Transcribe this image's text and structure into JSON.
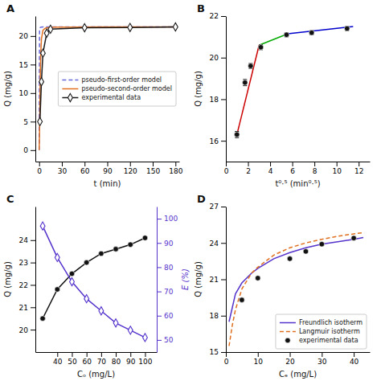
{
  "chart_data": [
    {
      "type": "line",
      "title": "A",
      "xlabel": "t (min)",
      "ylabel": "Q (mg/g)",
      "xlim": [
        -5,
        185
      ],
      "ylim": [
        -2,
        23.5
      ],
      "xticks": [
        0,
        30,
        60,
        90,
        120,
        150,
        180
      ],
      "yticks": [
        0,
        5,
        10,
        15,
        20
      ],
      "legend": "right",
      "series": [
        {
          "name": "pseudo-first-order model",
          "color": "#6666dd",
          "line_style": "dashed",
          "x": [
            0,
            0.5,
            1,
            1.5,
            2,
            3,
            5,
            10,
            30,
            60,
            90,
            120,
            150,
            180
          ],
          "values": [
            0,
            20.8,
            21.3,
            21.5,
            21.55,
            21.58,
            21.6,
            21.6,
            21.6,
            21.6,
            21.6,
            21.6,
            21.6,
            21.6
          ]
        },
        {
          "name": "pseudo-second-order model",
          "color": "#e07020",
          "line_style": "solid",
          "x": [
            0,
            0.5,
            1,
            1.5,
            2,
            3,
            5,
            8,
            12,
            20,
            40,
            80,
            120,
            180
          ],
          "values": [
            0,
            3.0,
            8.0,
            13.0,
            16.5,
            19.5,
            21.0,
            21.35,
            21.5,
            21.55,
            21.58,
            21.6,
            21.6,
            21.6
          ]
        },
        {
          "name": "experimental data",
          "color": "#1a1a1a",
          "line_style": "solid",
          "marker": "diamond",
          "x": [
            1,
            3,
            5,
            10,
            15,
            60,
            120,
            180
          ],
          "values": [
            5.0,
            12.0,
            17.0,
            20.5,
            21.2,
            21.45,
            21.5,
            21.6
          ]
        }
      ]
    },
    {
      "type": "line",
      "title": "B",
      "xlabel": "t⁰·⁵ (min⁰·⁵)",
      "ylabel": "Q (mg/g)",
      "xlim": [
        0,
        13
      ],
      "ylim": [
        15,
        22
      ],
      "xticks": [
        0,
        2,
        4,
        6,
        8,
        10,
        12
      ],
      "yticks": [
        16,
        18,
        20,
        22
      ],
      "series": [
        {
          "color": "#cc0000",
          "line_style": "solid",
          "x": [
            1.0,
            3.0
          ],
          "values": [
            16.3,
            20.6
          ]
        },
        {
          "color": "#00aa00",
          "line_style": "solid",
          "x": [
            3.0,
            5.6
          ],
          "values": [
            20.6,
            21.15
          ]
        },
        {
          "color": "#0000cc",
          "line_style": "solid",
          "x": [
            5.6,
            11.5
          ],
          "values": [
            21.15,
            21.5
          ]
        },
        {
          "type": "scatter",
          "color": "#111111",
          "marker": "circle",
          "x": [
            1.0,
            1.73,
            2.24,
            3.16,
            5.48,
            7.75,
            10.95
          ],
          "values": [
            16.3,
            18.8,
            19.6,
            20.5,
            21.1,
            21.2,
            21.4
          ],
          "errors": [
            0.15,
            0.15,
            0.12,
            0.12,
            0.1,
            0.1,
            0.1
          ]
        }
      ]
    },
    {
      "type": "line",
      "title": "C",
      "xlabel": "Cₒ (mg/L)",
      "ylabel": "Q (mg/g)",
      "y2label": "E (%)",
      "xlim": [
        25,
        108
      ],
      "ylim": [
        19,
        25.5
      ],
      "y2lim": [
        45,
        105
      ],
      "xticks": [
        40,
        50,
        60,
        70,
        80,
        90,
        100
      ],
      "yticks": [
        20,
        21,
        22,
        23,
        24
      ],
      "y2ticks": [
        50,
        60,
        70,
        80,
        90,
        100
      ],
      "series": [
        {
          "color": "#111111",
          "line_style": "solid",
          "marker": "circle",
          "x": [
            30,
            40,
            50,
            60,
            70,
            80,
            90,
            100
          ],
          "values": [
            20.5,
            21.8,
            22.5,
            23.0,
            23.4,
            23.6,
            23.8,
            24.1
          ]
        },
        {
          "axis": "y2",
          "color": "#5533cc",
          "line_style": "solid",
          "marker": "diamond",
          "x": [
            30,
            40,
            50,
            60,
            70,
            80,
            90,
            100
          ],
          "values": [
            97,
            84,
            74,
            67,
            62,
            57,
            54,
            51
          ]
        }
      ]
    },
    {
      "type": "line",
      "title": "D",
      "xlabel": "Cₑ (mg/L)",
      "ylabel": "Q (mg/g)",
      "xlim": [
        0,
        45
      ],
      "ylim": [
        15,
        27
      ],
      "xticks": [
        0,
        10,
        20,
        30,
        40
      ],
      "yticks": [
        15,
        18,
        21,
        24,
        27
      ],
      "legend": "lower right",
      "series": [
        {
          "name": "Freundlich isotherm",
          "color": "#5533cc",
          "line_style": "solid",
          "x": [
            1,
            3,
            5,
            8,
            10,
            15,
            20,
            25,
            30,
            35,
            40,
            43
          ],
          "values": [
            17.5,
            19.8,
            20.7,
            21.5,
            21.9,
            22.7,
            23.2,
            23.6,
            23.9,
            24.1,
            24.3,
            24.45
          ]
        },
        {
          "name": "Langmuir isotherm",
          "color": "#e07020",
          "line_style": "dashed",
          "x": [
            1,
            2,
            3,
            5,
            8,
            10,
            15,
            20,
            25,
            30,
            35,
            40,
            43
          ],
          "values": [
            15.5,
            17.2,
            18.5,
            20.2,
            21.5,
            22.0,
            23.0,
            23.6,
            24.0,
            24.3,
            24.55,
            24.75,
            24.85
          ]
        },
        {
          "name": "experimental data",
          "type": "scatter",
          "color": "#111111",
          "marker": "circle",
          "x": [
            5,
            10,
            20,
            25,
            30,
            40
          ],
          "values": [
            19.3,
            21.1,
            22.7,
            23.3,
            23.9,
            24.4
          ]
        }
      ]
    }
  ]
}
